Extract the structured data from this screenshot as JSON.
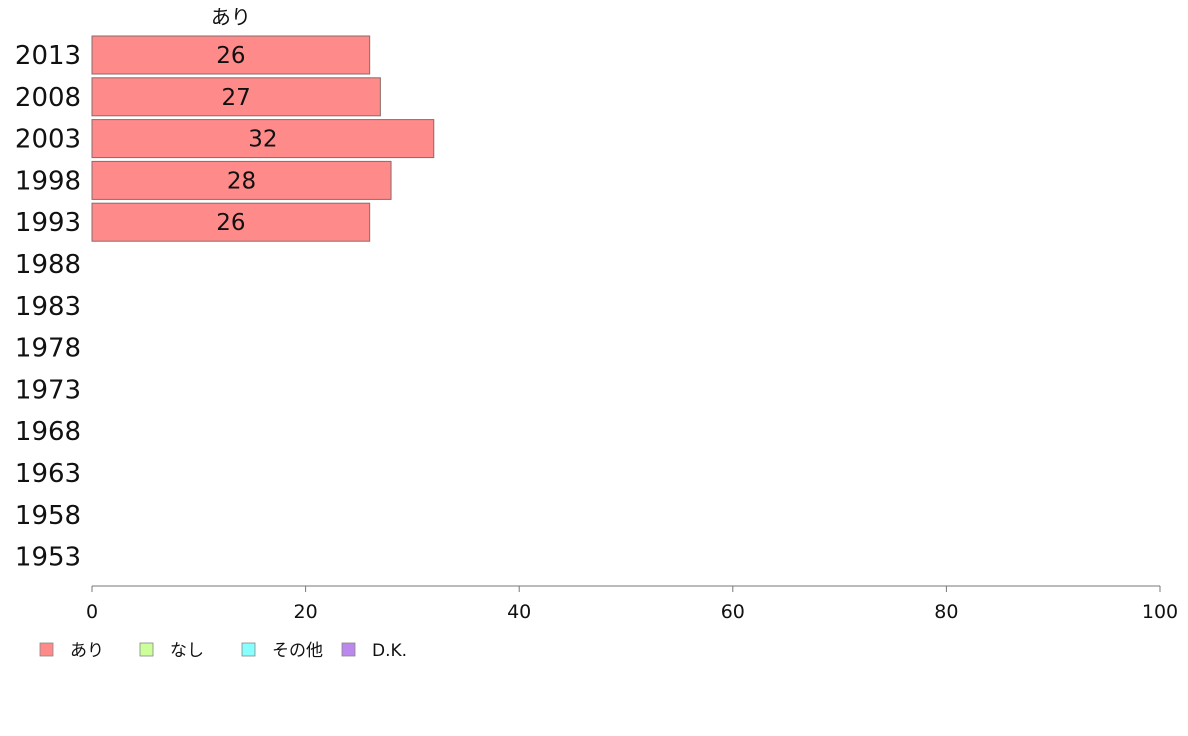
{
  "chart_data": {
    "type": "bar",
    "orientation": "horizontal",
    "stacked": true,
    "categories": [
      "2013",
      "2008",
      "2003",
      "1998",
      "1993",
      "1988",
      "1983",
      "1978",
      "1973",
      "1968",
      "1963",
      "1958",
      "1953"
    ],
    "series": [
      {
        "name": "あり",
        "color": "#ff8a8a",
        "values": [
          26,
          27,
          32,
          28,
          26,
          null,
          null,
          null,
          null,
          null,
          null,
          null,
          null
        ]
      },
      {
        "name": "なし",
        "color": "#ccff99",
        "values": [
          null,
          null,
          null,
          null,
          null,
          null,
          null,
          null,
          null,
          null,
          null,
          null,
          null
        ]
      },
      {
        "name": "その他",
        "color": "#88ffff",
        "values": [
          null,
          null,
          null,
          null,
          null,
          null,
          null,
          null,
          null,
          null,
          null,
          null,
          null
        ]
      },
      {
        "name": "D.K.",
        "color": "#bb88ee",
        "values": [
          null,
          null,
          null,
          null,
          null,
          null,
          null,
          null,
          null,
          null,
          null,
          null,
          null
        ]
      }
    ],
    "series_label": "あり",
    "xlim": [
      0,
      100
    ],
    "xticks": [
      0,
      20,
      40,
      60,
      80,
      100
    ],
    "grid": false,
    "legend_position": "bottom-left"
  }
}
